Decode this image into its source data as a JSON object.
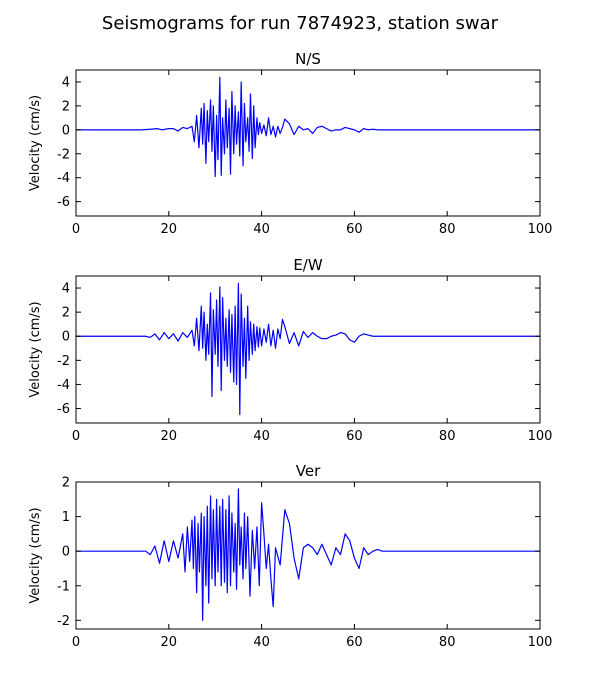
{
  "suptitle": "Seismograms for run 7874923, station swar",
  "chart_data": [
    {
      "type": "line",
      "title": "N/S",
      "xlabel": "",
      "ylabel": "Velocity (cm/s)",
      "xlim": [
        0,
        100
      ],
      "ylim": [
        -7.2,
        5.0
      ],
      "xticks": [
        0,
        20,
        40,
        60,
        80,
        100
      ],
      "yticks": [
        -6,
        -4,
        -2,
        0,
        2,
        4
      ],
      "grid": false,
      "series": [
        {
          "color": "#0000ff",
          "x": [
            0,
            10,
            14,
            16,
            17.5,
            18.5,
            20,
            21,
            22,
            23,
            24,
            25,
            25.5,
            26,
            26.5,
            27,
            27.3,
            27.6,
            28,
            28.3,
            28.6,
            29,
            29.3,
            29.6,
            30,
            30.3,
            30.6,
            31,
            31.3,
            31.6,
            32,
            32.3,
            32.6,
            33,
            33.3,
            33.6,
            34,
            34.3,
            34.6,
            35,
            35.3,
            35.6,
            36,
            36.3,
            36.6,
            37,
            37.3,
            37.6,
            38,
            38.3,
            38.6,
            39,
            39.3,
            39.6,
            40,
            40.5,
            41,
            41.5,
            42,
            42.5,
            43,
            43.5,
            44,
            44.5,
            45,
            46,
            47,
            48,
            49,
            50,
            51,
            52,
            53,
            54,
            55,
            56,
            57,
            58,
            59,
            60,
            61,
            62,
            63,
            64,
            65,
            66,
            68,
            70,
            75,
            80,
            90,
            100
          ],
          "y": [
            0,
            0,
            0,
            0.05,
            0.1,
            0,
            0.1,
            0.1,
            -0.1,
            0.2,
            0.1,
            0.3,
            -1.0,
            1.2,
            -1.5,
            1.8,
            -1.2,
            2.2,
            -2.8,
            1.6,
            -1.0,
            2.5,
            -1.8,
            2.0,
            -3.9,
            1.2,
            -2.5,
            4.4,
            -3.8,
            1.0,
            -2.0,
            2.5,
            -1.5,
            1.8,
            -3.7,
            3.2,
            -2.0,
            2.0,
            -1.2,
            1.5,
            -2.2,
            4.0,
            -3.0,
            2.2,
            -1.0,
            1.0,
            -1.8,
            3.0,
            -2.4,
            2.0,
            -1.5,
            1.0,
            -0.4,
            0.6,
            -0.3,
            0.4,
            -0.5,
            1.0,
            -0.4,
            0.3,
            -0.6,
            0.3,
            -0.3,
            0.2,
            0.9,
            0.5,
            -0.4,
            0.3,
            0.0,
            0.1,
            -0.3,
            0.2,
            0.3,
            0.1,
            -0.1,
            0.0,
            0.0,
            0.2,
            0.1,
            0.0,
            -0.2,
            0.1,
            0.0,
            0.05,
            0.0,
            0.0,
            0,
            0,
            0,
            0,
            0,
            0
          ]
        }
      ]
    },
    {
      "type": "line",
      "title": "E/W",
      "xlabel": "",
      "ylabel": "Velocity (cm/s)",
      "xlim": [
        0,
        100
      ],
      "ylim": [
        -7.2,
        5.0
      ],
      "xticks": [
        0,
        20,
        40,
        60,
        80,
        100
      ],
      "yticks": [
        -6,
        -4,
        -2,
        0,
        2,
        4
      ],
      "grid": false,
      "series": [
        {
          "color": "#0000ff",
          "x": [
            0,
            10,
            15,
            16,
            17,
            18,
            19,
            20,
            21,
            22,
            23,
            24,
            25,
            25.5,
            26,
            26.5,
            27,
            27.3,
            27.6,
            28,
            28.3,
            28.6,
            29,
            29.3,
            29.6,
            30,
            30.3,
            30.6,
            31,
            31.3,
            31.6,
            32,
            32.3,
            32.6,
            33,
            33.3,
            33.6,
            34,
            34.3,
            34.6,
            35,
            35.3,
            35.6,
            36,
            36.3,
            36.6,
            37,
            37.3,
            37.6,
            38,
            38.3,
            38.6,
            39,
            39.3,
            39.6,
            40,
            40.5,
            41,
            41.5,
            42,
            42.5,
            43,
            43.5,
            44,
            44.5,
            45,
            46,
            47,
            48,
            49,
            50,
            51,
            52,
            53,
            54,
            55,
            56,
            57,
            58,
            59,
            60,
            61,
            62,
            63,
            64,
            65,
            66,
            68,
            70,
            75,
            80,
            90,
            100
          ],
          "y": [
            0,
            0,
            0,
            -0.1,
            0.2,
            -0.3,
            0.3,
            -0.2,
            0.2,
            -0.4,
            0.3,
            -0.1,
            0.5,
            -0.8,
            1.5,
            -1.2,
            2.5,
            -1.0,
            2.0,
            -2.0,
            1.0,
            -1.5,
            3.6,
            -5.0,
            2.2,
            -1.5,
            3.0,
            -2.5,
            4.1,
            -4.5,
            3.2,
            -2.0,
            1.5,
            -2.5,
            2.2,
            -3.0,
            1.8,
            -3.8,
            2.5,
            -4.0,
            4.4,
            -6.5,
            3.5,
            -2.5,
            1.5,
            -3.5,
            2.5,
            -2.0,
            1.2,
            -1.5,
            1.0,
            -1.2,
            0.8,
            -0.9,
            0.7,
            -0.8,
            0.6,
            -0.5,
            1.0,
            -0.8,
            0.5,
            -1.0,
            0.6,
            -0.2,
            1.4,
            0.8,
            -0.6,
            0.3,
            -0.8,
            0.4,
            -0.1,
            0.3,
            0.0,
            -0.2,
            -0.2,
            0.0,
            0.1,
            0.3,
            0.2,
            -0.3,
            -0.5,
            0.0,
            0.2,
            0.1,
            0.0,
            0.0,
            0,
            0,
            0,
            0,
            0,
            0,
            0
          ]
        }
      ]
    },
    {
      "type": "line",
      "title": "Ver",
      "xlabel": "",
      "ylabel": "Velocity (cm/s)",
      "xlim": [
        0,
        100
      ],
      "ylim": [
        -2.25,
        2.0
      ],
      "xticks": [
        0,
        20,
        40,
        60,
        80,
        100
      ],
      "yticks": [
        -2,
        -1,
        0,
        1,
        2
      ],
      "grid": false,
      "series": [
        {
          "color": "#0000ff",
          "x": [
            0,
            10,
            14,
            15,
            16,
            17,
            18,
            19,
            20,
            21,
            22,
            23,
            23.5,
            24,
            24.5,
            25,
            25.3,
            25.6,
            26,
            26.3,
            26.6,
            27,
            27.3,
            27.6,
            28,
            28.3,
            28.6,
            29,
            29.3,
            29.6,
            30,
            30.3,
            30.6,
            31,
            31.3,
            31.6,
            32,
            32.3,
            32.6,
            33,
            33.3,
            33.6,
            34,
            34.3,
            34.6,
            35,
            35.3,
            35.6,
            36,
            36.3,
            36.6,
            37,
            37.5,
            38,
            38.5,
            39,
            39.5,
            40,
            40.5,
            41,
            41.5,
            42,
            42.5,
            43,
            44,
            45,
            46,
            47,
            48,
            49,
            50,
            51,
            52,
            53,
            54,
            55,
            56,
            57,
            58,
            59,
            60,
            61,
            62,
            63,
            64,
            65,
            66,
            68,
            70,
            75,
            80,
            90,
            100
          ],
          "y": [
            0,
            0,
            0,
            0.0,
            -0.1,
            0.15,
            -0.35,
            0.3,
            -0.3,
            0.3,
            -0.2,
            0.5,
            -0.6,
            0.7,
            -0.3,
            0.9,
            -0.5,
            1.0,
            -1.2,
            0.8,
            -0.6,
            1.1,
            -2.0,
            1.0,
            -1.0,
            1.3,
            -1.5,
            1.6,
            -0.8,
            1.2,
            -1.0,
            1.5,
            -0.6,
            1.3,
            -1.0,
            1.5,
            -0.9,
            1.2,
            -1.2,
            1.6,
            -1.0,
            1.1,
            -0.6,
            0.8,
            -1.1,
            1.8,
            -0.4,
            0.7,
            -0.8,
            1.1,
            -0.5,
            1.0,
            -1.3,
            0.6,
            -0.5,
            0.7,
            -1.0,
            1.4,
            0.5,
            -0.5,
            0.2,
            -0.8,
            -1.6,
            0.1,
            -0.4,
            1.2,
            0.8,
            -0.2,
            -0.8,
            0.1,
            0.2,
            0.1,
            -0.1,
            0.2,
            -0.1,
            -0.4,
            0.1,
            -0.1,
            0.5,
            0.3,
            -0.2,
            -0.5,
            0.1,
            -0.1,
            0.0,
            0.05,
            0.0,
            0,
            0,
            0,
            0,
            0,
            0
          ]
        }
      ]
    }
  ]
}
